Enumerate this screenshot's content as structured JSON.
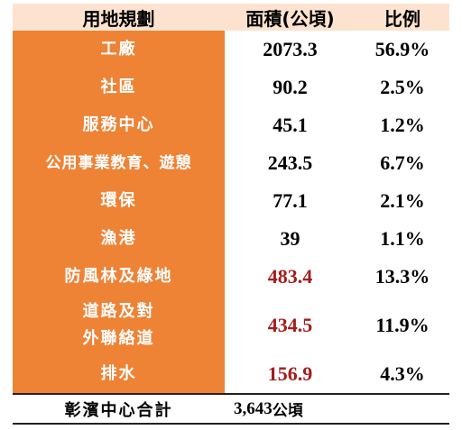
{
  "header": {
    "col1": "用地規劃",
    "col2": "面積(公頃)",
    "col3": "比例"
  },
  "rows": [
    {
      "name": "工廠",
      "area": "2073.3",
      "pct": "56.9%"
    },
    {
      "name": "社區",
      "area": "90.2",
      "pct": "2.5%"
    },
    {
      "name": "服務中心",
      "area": "45.1",
      "pct": "1.2%"
    },
    {
      "name": "公用事業教育、遊憩",
      "area": "243.5",
      "pct": "6.7%"
    },
    {
      "name": "環保",
      "area": "77.1",
      "pct": "2.1%"
    },
    {
      "name": "漁港",
      "area": "39",
      "pct": "1.1%"
    },
    {
      "name": "防風林及綠地",
      "area": "483.4",
      "pct": "13.3%"
    },
    {
      "name_line1": "道路及對",
      "name_line2": "外聯絡道",
      "area": "434.5",
      "pct": "11.9%"
    },
    {
      "name": "排水",
      "area": "156.9",
      "pct": "4.3%"
    }
  ],
  "total": {
    "label": "彰濱中心合計",
    "value": "3,643",
    "unit": "公頃"
  },
  "colors": {
    "category_bg": "#ee8336",
    "header_bg": "#fde3cf",
    "highlight_text": "#a61b1b"
  }
}
